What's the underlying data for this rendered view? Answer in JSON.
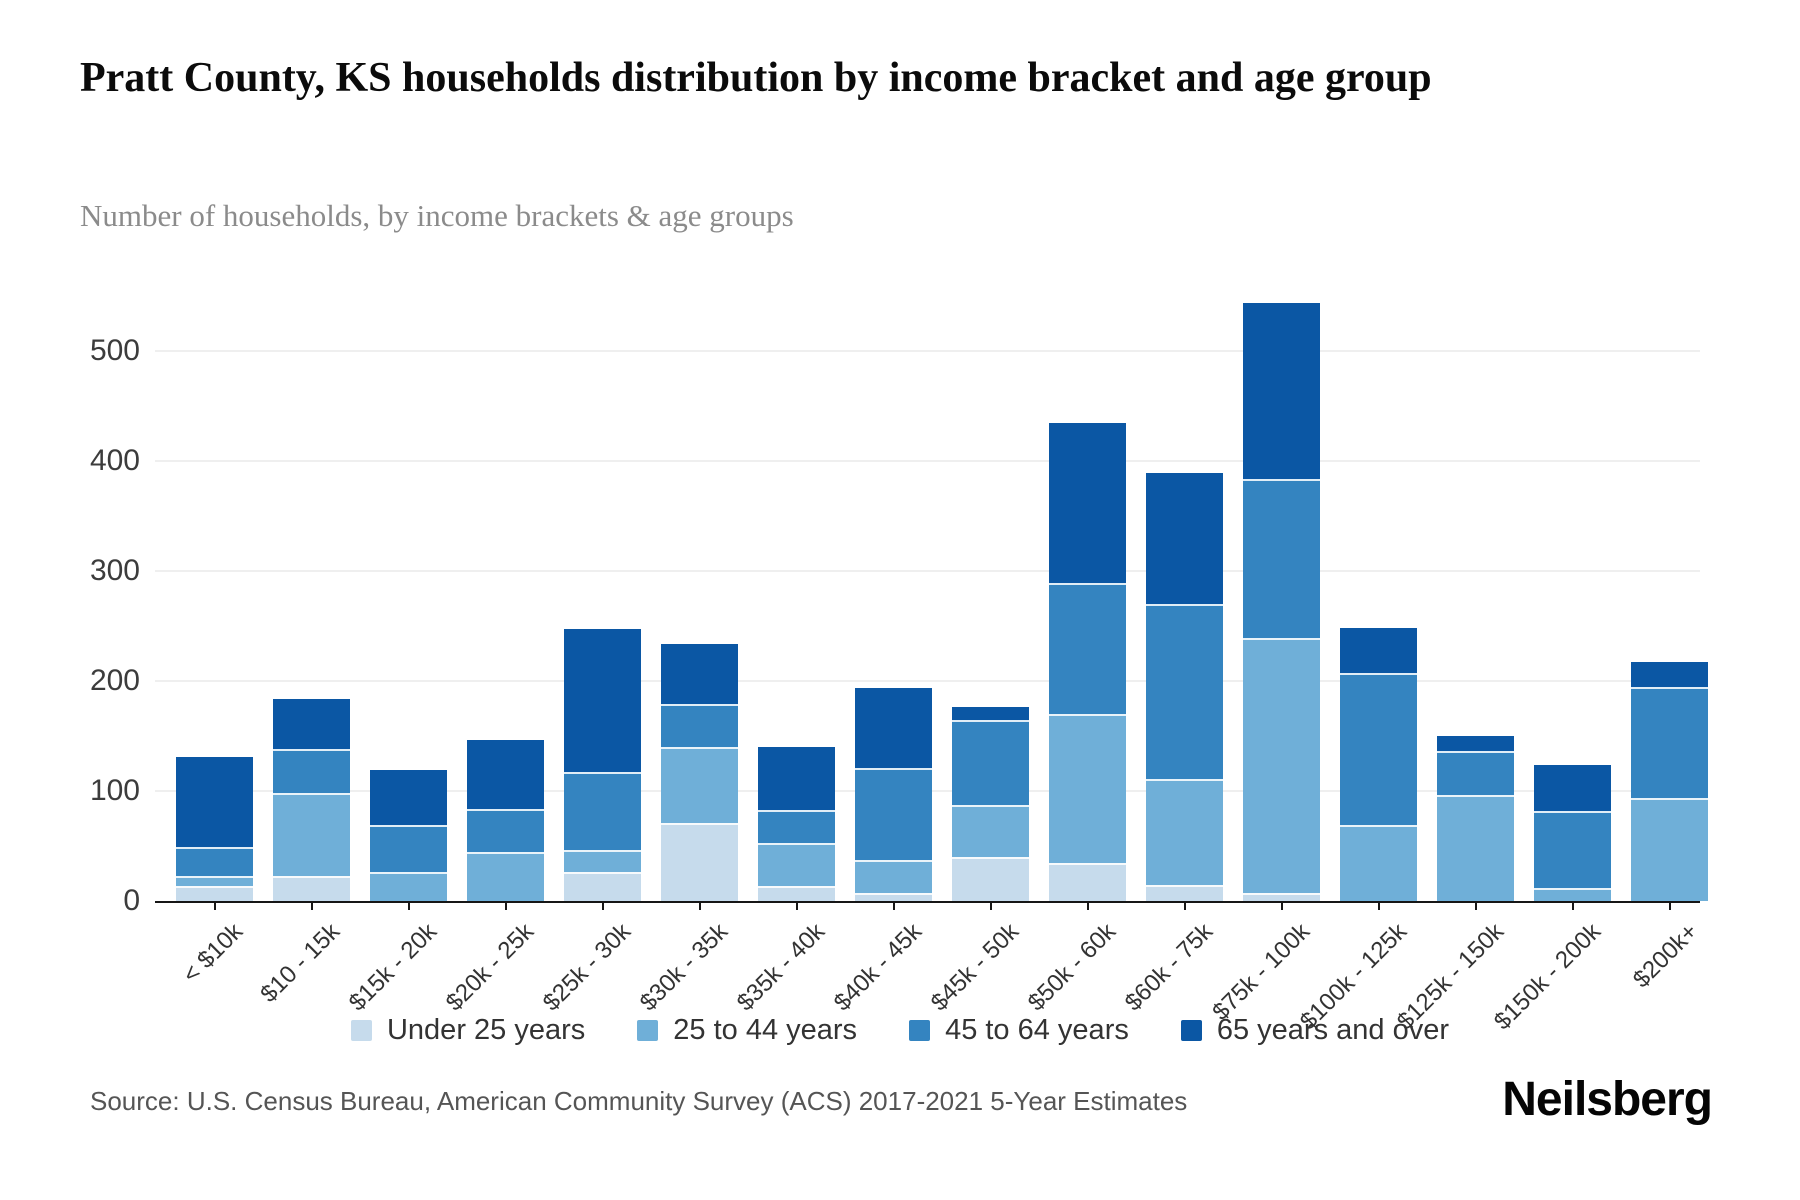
{
  "header": {
    "title": "Pratt County, KS households distribution by income bracket and age group",
    "subtitle": "Number of households, by income brackets & age groups"
  },
  "footer": {
    "source": "Source: U.S. Census Bureau, American Community Survey (ACS) 2017-2021 5-Year Estimates",
    "brand": "Neilsberg"
  },
  "legend": [
    {
      "label": "Under 25 years"
    },
    {
      "label": "25 to 44 years"
    },
    {
      "label": "45 to 64 years"
    },
    {
      "label": "65 years and over"
    }
  ],
  "chart_data": {
    "type": "bar",
    "stacked": true,
    "title": "Pratt County, KS households distribution by income bracket and age group",
    "subtitle": "Number of households, by income brackets & age groups",
    "xlabel": "",
    "ylabel": "",
    "ylim": [
      0,
      550
    ],
    "yticks": [
      0,
      100,
      200,
      300,
      400,
      500
    ],
    "grid": true,
    "legend_position": "bottom",
    "categories": [
      "< $10k",
      "$10 - 15k",
      "$15k - 20k",
      "$20k - 25k",
      "$25k - 30k",
      "$30k - 35k",
      "$35k - 40k",
      "$40k - 45k",
      "$45k - 50k",
      "$50k - 60k",
      "$60k - 75k",
      "$75k - 100k",
      "$100k - 125k",
      "$125k - 150k",
      "$150k - 200k",
      "$200k+"
    ],
    "series": [
      {
        "name": "Under 25 years",
        "color": "#c6dbec",
        "values": [
          14,
          23,
          0,
          0,
          26,
          71,
          14,
          7,
          40,
          35,
          15,
          7,
          0,
          0,
          0,
          0
        ]
      },
      {
        "name": "25 to 44 years",
        "color": "#6fafd8",
        "values": [
          9,
          75,
          26,
          45,
          20,
          69,
          39,
          30,
          47,
          135,
          96,
          232,
          69,
          96,
          12,
          94
        ]
      },
      {
        "name": "45 to 64 years",
        "color": "#3484c0",
        "values": [
          26,
          40,
          43,
          39,
          71,
          39,
          30,
          84,
          78,
          119,
          159,
          145,
          138,
          40,
          70,
          101
        ]
      },
      {
        "name": "65 years and over",
        "color": "#0b57a4",
        "values": [
          82,
          46,
          50,
          62,
          130,
          55,
          57,
          73,
          11,
          146,
          119,
          160,
          41,
          14,
          42,
          22
        ]
      }
    ]
  }
}
